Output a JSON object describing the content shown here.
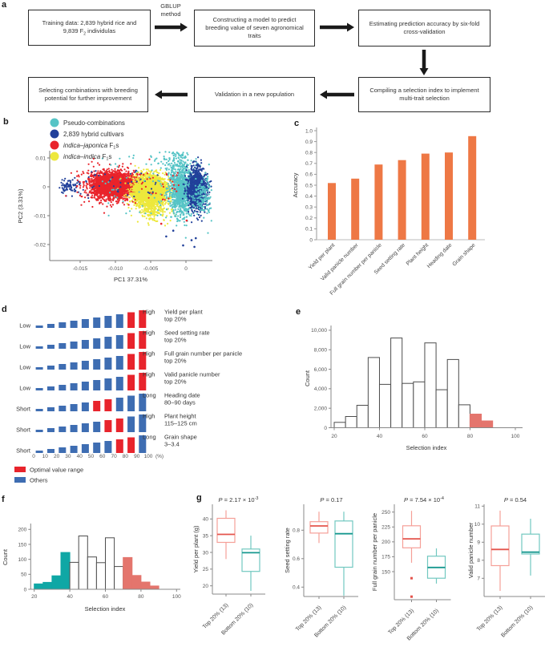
{
  "letters": {
    "a": "a",
    "b": "b",
    "c": "c",
    "d": "d",
    "e": "e",
    "f": "f",
    "g": "g"
  },
  "palette": {
    "teal": "#56C4C6",
    "blue": "#21409A",
    "red": "#E9242B",
    "yellow": "#EDE83C",
    "orange": "#EE7845",
    "d_red": "#E8242C",
    "d_blue": "#3E6DB2",
    "salmon": "#E4756D",
    "f_teal": "#0FA7A5",
    "hist_stroke": "#4D4D4D",
    "g_red": "#F59F98",
    "g_red_med": "#E4544C",
    "g_teal": "#72C8C0",
    "g_teal_med": "#17988F",
    "arrow": "#1A1A1A"
  },
  "panel_a": {
    "arrow_label_lines": [
      "GBLUP",
      "method"
    ],
    "boxes": [
      {
        "parts": [
          {
            "t": "Training data: 2,839 hybrid rice and 9,839 F"
          },
          {
            "t": "2",
            "sub": 1
          },
          {
            "t": " individulas"
          }
        ]
      },
      {
        "parts": [
          {
            "t": "Constructing a model to predict breeding value of seven agronomical traits"
          }
        ]
      },
      {
        "parts": [
          {
            "t": "Estimating prediction accuracy by six-fold cross-validation"
          }
        ]
      },
      {
        "parts": [
          {
            "t": "Compiling a selection index to implement multi-trait selection"
          }
        ]
      },
      {
        "parts": [
          {
            "t": "Validation in a new population"
          }
        ]
      },
      {
        "parts": [
          {
            "t": "Selecting combinations with breeding potential for further improvement"
          }
        ]
      }
    ]
  },
  "chart_data": [
    {
      "id": "b",
      "type": "scatter",
      "xlabel": "PC1 37.31%",
      "ylabel": "PC2 (3.31%)",
      "xticks": [
        {
          "v": -0.015,
          "l": "-0.015"
        },
        {
          "v": -0.01,
          "l": "-0.010"
        },
        {
          "v": -0.005,
          "l": "-0.005"
        },
        {
          "v": 0,
          "l": "0"
        }
      ],
      "yticks": [
        {
          "v": 0.01,
          "l": "0.01"
        },
        {
          "v": 0,
          "l": "0"
        },
        {
          "v": -0.01,
          "l": "-0.01"
        },
        {
          "v": -0.02,
          "l": "-0.02"
        }
      ],
      "legend": [
        {
          "c": "teal",
          "parts": [
            {
              "t": "Pseudo-combinations"
            }
          ]
        },
        {
          "c": "blue",
          "parts": [
            {
              "t": "2,839 hybrid cultivars"
            }
          ]
        },
        {
          "c": "red",
          "parts": [
            {
              "t": "indica–japonica",
              "i": 1
            },
            {
              "t": " F"
            },
            {
              "t": "1",
              "sub": 1
            },
            {
              "t": "s",
              "r": 1
            }
          ]
        },
        {
          "c": "yellow",
          "parts": [
            {
              "t": "indica–indica",
              "i": 1
            },
            {
              "t": " F"
            },
            {
              "t": "1",
              "sub": 1
            },
            {
              "t": "s",
              "r": 1
            }
          ]
        }
      ],
      "clusters": [
        {
          "c": "blue",
          "n": 75,
          "x": -0.0164,
          "sx": 0.0008,
          "y": 0.0002,
          "sy": 0.0013
        },
        {
          "c": "red",
          "n": 2400,
          "x": -0.0104,
          "sx": 0.0015,
          "y": 0.0006,
          "sy": 0.0021
        },
        {
          "c": "red",
          "n": 260,
          "x": -0.0104,
          "sx": 0.0022,
          "y": 0.0004,
          "sy": 0.0032
        },
        {
          "c": "yellow",
          "n": 2300,
          "x": -0.0051,
          "sx": 0.0012,
          "y": -0.0013,
          "sy": 0.0026
        },
        {
          "c": "yellow",
          "n": 200,
          "x": -0.0044,
          "sx": 0.0013,
          "y": -0.0075,
          "sy": 0.0028
        },
        {
          "c": "teal",
          "n": 900,
          "x": -0.0007,
          "sx": 0.0009,
          "y": -0.0012,
          "sy": 0.0046
        },
        {
          "c": "teal",
          "n": 140,
          "x": -0.0013,
          "sx": 0.0016,
          "y": 0.0093,
          "sy": 0.0028
        },
        {
          "c": "blue",
          "n": 1000,
          "x": 0.0016,
          "sx": 0.0007,
          "y": -0.0008,
          "sy": 0.0036
        },
        {
          "c": "teal",
          "n": 160,
          "x": 0.0024,
          "sx": 0.0007,
          "y": -0.003,
          "sy": 0.0038
        },
        {
          "c": "red",
          "n": 45,
          "box": [
            -0.008,
            -0.001,
            -0.006,
            0.005
          ]
        },
        {
          "c": "blue",
          "n": 40,
          "box": [
            -0.0145,
            -0.004,
            -0.004,
            0.006
          ]
        },
        {
          "c": "yellow",
          "n": 18,
          "box": [
            -0.009,
            -0.002,
            -0.008,
            0.004
          ]
        },
        {
          "c": "teal",
          "n": 50,
          "box": [
            -0.012,
            -0.002,
            -0.011,
            0.011
          ]
        }
      ],
      "extra_points": [
        {
          "c": "blue",
          "pts": [
            [
              0.0008,
              -0.0185
            ],
            [
              0.0012,
              -0.0208
            ],
            [
              -0.0004,
              -0.0203
            ],
            [
              0.0014,
              -0.0178
            ],
            [
              -0.0028,
              -0.0172
            ],
            [
              -0.0018,
              -0.0152
            ]
          ]
        },
        {
          "c": "red",
          "pts": [
            [
              -0.0035,
              -0.0128
            ],
            [
              0.0001,
              -0.0117
            ]
          ]
        }
      ]
    },
    {
      "id": "c",
      "type": "bar",
      "ylabel": "Accuracy",
      "ylim": [
        0,
        1
      ],
      "categories": [
        "Yield per plant",
        "Valid panicle number",
        "Full grain number per panicle",
        "Seed setting rate",
        "Plant height",
        "Heading date",
        "Grain shape"
      ],
      "values": [
        0.52,
        0.56,
        0.69,
        0.73,
        0.79,
        0.8,
        0.95
      ],
      "yticks": [
        "0",
        "0.1",
        "0.2",
        "0.3",
        "0.4",
        "0.5",
        "0.6",
        "0.7",
        "0.8",
        "0.9",
        "1.0"
      ]
    },
    {
      "id": "d",
      "type": "decile-rows",
      "rows": [
        {
          "side": "Low",
          "level": "High",
          "trait": "Yield per plant",
          "range": "top 20%",
          "red": [
            9,
            10
          ]
        },
        {
          "side": "Low",
          "level": "High",
          "trait": "Seed setting rate",
          "range": "top 20%",
          "red": [
            9,
            10
          ]
        },
        {
          "side": "Low",
          "level": "High",
          "trait": "Full grain number per panicle",
          "range": "top 20%",
          "red": [
            9,
            10
          ]
        },
        {
          "side": "Low",
          "level": "High",
          "trait": "Valid panicle number",
          "range": "top 20%",
          "red": [
            9,
            10
          ]
        },
        {
          "side": "Short",
          "level": "Long",
          "trait": "Heading date",
          "range": "80–90 days",
          "red": [
            6,
            7
          ]
        },
        {
          "side": "Short",
          "level": "High",
          "trait": "Plant height",
          "range": "115–125 cm",
          "red": [
            7,
            8
          ]
        },
        {
          "side": "Short",
          "level": "Long",
          "trait": "Grain shape",
          "range": "3–3.4",
          "red": [
            8,
            9
          ]
        }
      ],
      "xticks": [
        "0",
        "10",
        "20",
        "30",
        "40",
        "50",
        "60",
        "70",
        "80",
        "90",
        "100"
      ],
      "pct": "(%)",
      "legend": [
        {
          "label": "Optimal value range",
          "c": "d_red"
        },
        {
          "label": "Others",
          "c": "d_blue"
        }
      ]
    },
    {
      "id": "e",
      "type": "histogram",
      "xlabel": "Selection index",
      "ylabel": "Count",
      "bin_start": 20,
      "bin_width": 5,
      "values": [
        550,
        1150,
        2300,
        7200,
        4450,
        9200,
        4550,
        4700,
        8700,
        3900,
        7000,
        2350,
        1400,
        700
      ],
      "n_head": 0,
      "head_color": "f_teal",
      "n_tail": 2,
      "tail_color": "salmon",
      "yticks": [
        {
          "v": 0,
          "l": "0"
        },
        {
          "v": 2000,
          "l": "2,000"
        },
        {
          "v": 4000,
          "l": "4,000"
        },
        {
          "v": 6000,
          "l": "6,000"
        },
        {
          "v": 8000,
          "l": "8,000"
        },
        {
          "v": 10000,
          "l": "10,000"
        }
      ],
      "xticks": [
        {
          "v": 20,
          "l": "20"
        },
        {
          "v": 40,
          "l": "40"
        },
        {
          "v": 60,
          "l": "60"
        },
        {
          "v": 80,
          "l": "80"
        },
        {
          "v": 100,
          "l": "100"
        }
      ]
    },
    {
      "id": "f",
      "type": "histogram",
      "xlabel": "Selection index",
      "ylabel": "Count",
      "bin_start": 20,
      "bin_width": 5,
      "values": [
        18,
        23,
        45,
        123,
        90,
        178,
        108,
        89,
        172,
        76,
        106,
        46,
        24,
        11
      ],
      "n_head": 4,
      "head_color": "f_teal",
      "n_tail": 4,
      "tail_color": "salmon",
      "yticks": [
        {
          "v": 0,
          "l": "0"
        },
        {
          "v": 50,
          "l": "50"
        },
        {
          "v": 100,
          "l": "100"
        },
        {
          "v": 150,
          "l": "150"
        },
        {
          "v": 200,
          "l": "200"
        }
      ],
      "xticks": [
        {
          "v": 20,
          "l": "20"
        },
        {
          "v": 40,
          "l": "40"
        },
        {
          "v": 60,
          "l": "60"
        },
        {
          "v": 80,
          "l": "80"
        },
        {
          "v": 100,
          "l": "100"
        }
      ]
    },
    {
      "id": "g",
      "type": "boxplots",
      "x_labels": [
        "Top 20% (13)",
        "Bottom 20% (10)"
      ],
      "subplots": [
        {
          "ylabel": "Yield per plant (g)",
          "p": {
            "pre": "P",
            "base": " = 2.17 × 10",
            "exp": "-3"
          },
          "yticks": [
            {
              "v": 40,
              "l": "40"
            },
            {
              "v": 35,
              "l": "35"
            },
            {
              "v": 30,
              "l": "30"
            },
            {
              "v": 25,
              "l": "25"
            },
            {
              "v": 20,
              "l": "20"
            }
          ],
          "groups": [
            {
              "c": "g_red",
              "med_c": "g_red_med",
              "wl": 28,
              "q1": 33,
              "med": 35.4,
              "q3": 40.2,
              "wh": 42.6,
              "out": []
            },
            {
              "c": "g_teal",
              "med_c": "g_teal_med",
              "wl": 18.5,
              "q1": 24.3,
              "med": 29.9,
              "q3": 31,
              "wh": 35,
              "out": []
            }
          ]
        },
        {
          "ylabel": "Seed setting rate",
          "p": {
            "pre": "P",
            "base": " = 0.17",
            "exp": null
          },
          "yticks": [
            {
              "v": 0.8,
              "l": "0.8"
            },
            {
              "v": 0.6,
              "l": "0.6"
            },
            {
              "v": 0.4,
              "l": "0.4"
            }
          ],
          "groups": [
            {
              "c": "g_red",
              "med_c": "g_red_med",
              "wl": 0.71,
              "q1": 0.78,
              "med": 0.83,
              "q3": 0.86,
              "wh": 0.93,
              "out": []
            },
            {
              "c": "g_teal",
              "med_c": "g_teal_med",
              "wl": 0.34,
              "q1": 0.54,
              "med": 0.775,
              "q3": 0.865,
              "wh": 0.93,
              "out": []
            }
          ]
        },
        {
          "ylabel": "Full grain number per panicle",
          "p": {
            "pre": "P",
            "base": " = 7.54 × 10",
            "exp": "-4"
          },
          "yticks": [
            {
              "v": 250,
              "l": "250"
            },
            {
              "v": 225,
              "l": "225"
            },
            {
              "v": 200,
              "l": "200"
            },
            {
              "v": 175,
              "l": "175"
            },
            {
              "v": 150,
              "l": "150"
            }
          ],
          "groups": [
            {
              "c": "g_red",
              "med_c": "g_red_med",
              "wl": 165,
              "q1": 190,
              "med": 205,
              "q3": 227,
              "wh": 252,
              "out": [
                139,
                108
              ]
            },
            {
              "c": "g_teal",
              "med_c": "g_teal_med",
              "wl": 130,
              "q1": 139,
              "med": 157,
              "q3": 176,
              "wh": 189,
              "out": []
            }
          ]
        },
        {
          "ylabel": "Valid panicle number",
          "p": {
            "pre": "P",
            "base": " = 0.54",
            "exp": null
          },
          "yticks": [
            {
              "v": 11,
              "l": "11"
            },
            {
              "v": 10,
              "l": "10"
            },
            {
              "v": 9,
              "l": "9"
            },
            {
              "v": 8,
              "l": "8"
            },
            {
              "v": 7,
              "l": "7"
            }
          ],
          "groups": [
            {
              "c": "g_red",
              "med_c": "g_red_med",
              "wl": 6.3,
              "q1": 7.7,
              "med": 8.6,
              "q3": 9.9,
              "wh": 10.75,
              "out": []
            },
            {
              "c": "g_teal",
              "med_c": "g_teal_med",
              "wl": 7.15,
              "q1": 8.35,
              "med": 8.45,
              "q3": 9.45,
              "wh": 10.3,
              "out": []
            }
          ]
        }
      ]
    }
  ]
}
